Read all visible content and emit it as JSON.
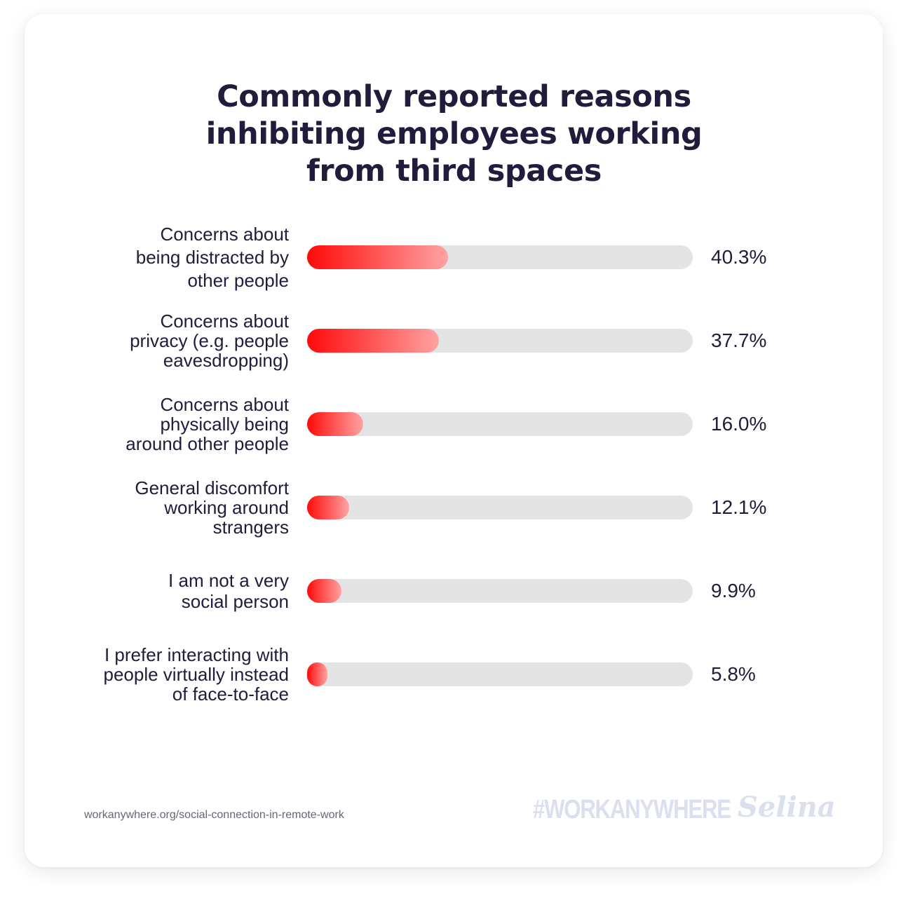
{
  "chart_data": {
    "type": "bar",
    "orientation": "horizontal",
    "title_lines": [
      "Commonly reported reasons",
      "inhibiting employees working",
      "from third spaces"
    ],
    "categories": [
      [
        "Concerns about",
        "being distracted by",
        "other people"
      ],
      [
        "Concerns about",
        "privacy (e.g. people",
        "eavesdropping)"
      ],
      [
        "Concerns about",
        "physically being",
        "around other people"
      ],
      [
        "General discomfort",
        "working around",
        "strangers"
      ],
      [
        "I am not a very",
        "social person"
      ],
      [
        "I prefer interacting with",
        "people virtually instead",
        "of face-to-face"
      ]
    ],
    "values": [
      40.3,
      37.7,
      16.0,
      12.1,
      9.9,
      5.8
    ],
    "value_labels": [
      "40.3%",
      "37.7%",
      "16.0%",
      "12.1%",
      "9.9%",
      "5.8%"
    ],
    "xlim": [
      0,
      100
    ],
    "grid": false,
    "colors": {
      "bar_start": "#ff0a0a",
      "bar_end": "#ffa3a3",
      "track": "#e4e4e4",
      "text": "#1f1d3b"
    }
  },
  "footer": {
    "source": "workanywhere.org/social-connection-in-remote-work",
    "hashtag": "#WORKANYWHERE",
    "brand": "Selina"
  }
}
